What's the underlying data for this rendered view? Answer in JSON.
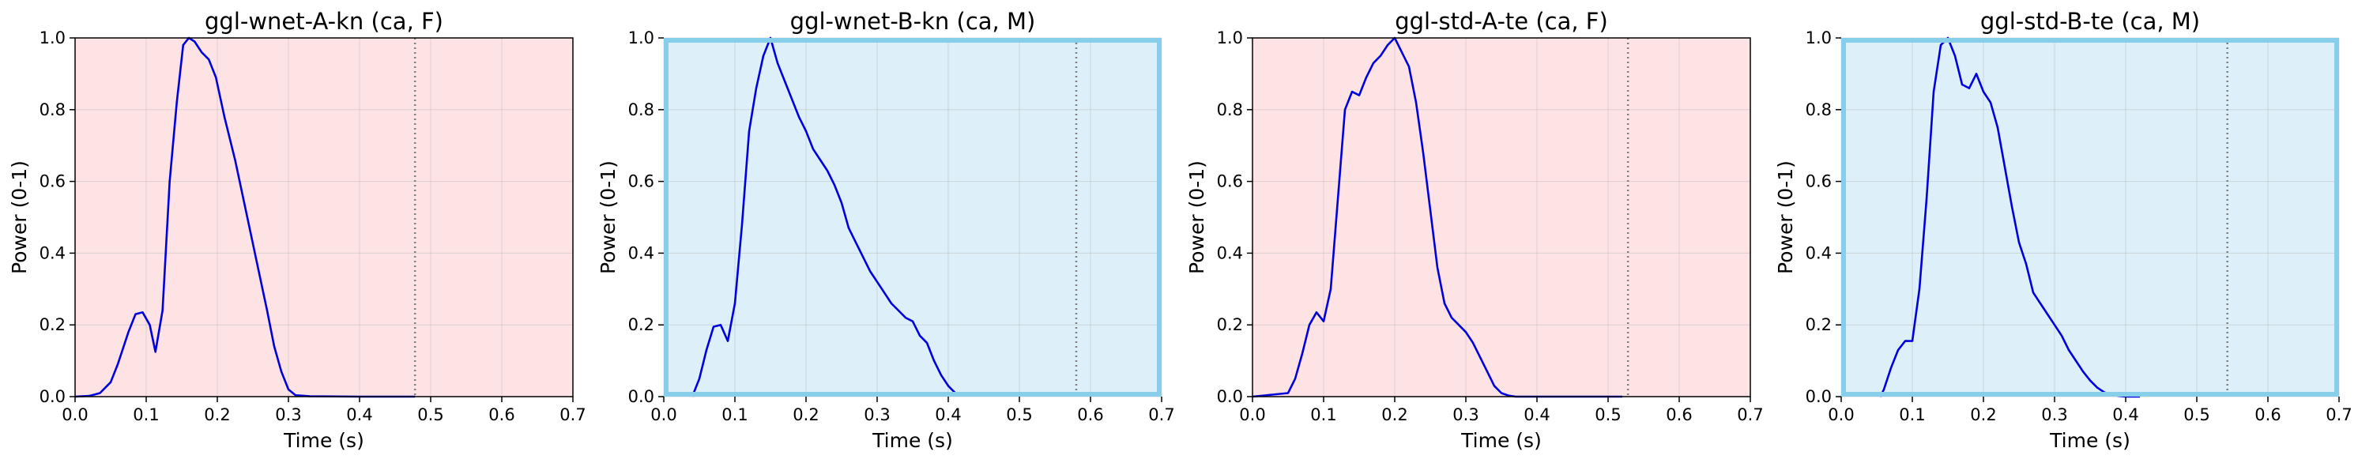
{
  "chart_data": [
    {
      "type": "line",
      "title": "ggl-wnet-A-kn (ca, F)",
      "xlabel": "Time (s)",
      "ylabel": "Power (0-1)",
      "xlim": [
        0,
        0.7
      ],
      "ylim": [
        0,
        1.0
      ],
      "xticks": [
        "0.0",
        "0.1",
        "0.2",
        "0.3",
        "0.4",
        "0.5",
        "0.6",
        "0.7"
      ],
      "yticks": [
        "0.0",
        "0.2",
        "0.4",
        "0.6",
        "0.8",
        "1.0"
      ],
      "grid": true,
      "background_color": "#fde3e3",
      "border_highlight": false,
      "line_color": "#0000dd",
      "vline_x": 0.478,
      "x": [
        0.0,
        0.02,
        0.035,
        0.05,
        0.06,
        0.075,
        0.085,
        0.095,
        0.105,
        0.113,
        0.123,
        0.133,
        0.143,
        0.152,
        0.16,
        0.168,
        0.178,
        0.188,
        0.198,
        0.21,
        0.225,
        0.24,
        0.255,
        0.27,
        0.28,
        0.29,
        0.3,
        0.31,
        0.33,
        0.4,
        0.478
      ],
      "y": [
        0.0,
        0.002,
        0.01,
        0.04,
        0.09,
        0.18,
        0.23,
        0.235,
        0.2,
        0.125,
        0.24,
        0.6,
        0.82,
        0.98,
        1.0,
        0.99,
        0.96,
        0.94,
        0.89,
        0.78,
        0.66,
        0.52,
        0.38,
        0.24,
        0.14,
        0.07,
        0.02,
        0.004,
        0.001,
        0.0,
        0.0
      ]
    },
    {
      "type": "line",
      "title": "ggl-wnet-B-kn (ca, M)",
      "xlabel": "Time (s)",
      "ylabel": "Power (0-1)",
      "xlim": [
        0,
        0.7
      ],
      "ylim": [
        0,
        1.0
      ],
      "xticks": [
        "0.0",
        "0.1",
        "0.2",
        "0.3",
        "0.4",
        "0.5",
        "0.6",
        "0.7"
      ],
      "yticks": [
        "0.0",
        "0.2",
        "0.4",
        "0.6",
        "0.8",
        "1.0"
      ],
      "grid": true,
      "background_color": "#ddeff8",
      "border_highlight": true,
      "border_color": "#87ceeb",
      "line_color": "#0000dd",
      "vline_x": 0.58,
      "x": [
        0.04,
        0.05,
        0.06,
        0.07,
        0.08,
        0.09,
        0.1,
        0.11,
        0.12,
        0.13,
        0.14,
        0.15,
        0.16,
        0.17,
        0.18,
        0.19,
        0.2,
        0.21,
        0.22,
        0.23,
        0.24,
        0.25,
        0.26,
        0.27,
        0.28,
        0.29,
        0.3,
        0.31,
        0.32,
        0.33,
        0.34,
        0.35,
        0.36,
        0.37,
        0.38,
        0.39,
        0.4,
        0.41
      ],
      "y": [
        0.0,
        0.05,
        0.13,
        0.195,
        0.2,
        0.155,
        0.26,
        0.48,
        0.74,
        0.86,
        0.95,
        1.0,
        0.93,
        0.88,
        0.83,
        0.78,
        0.74,
        0.69,
        0.66,
        0.63,
        0.59,
        0.54,
        0.47,
        0.43,
        0.39,
        0.35,
        0.32,
        0.29,
        0.26,
        0.24,
        0.22,
        0.21,
        0.17,
        0.15,
        0.1,
        0.06,
        0.03,
        0.01
      ]
    },
    {
      "type": "line",
      "title": "ggl-std-A-te (ca, F)",
      "xlabel": "Time (s)",
      "ylabel": "Power (0-1)",
      "xlim": [
        0,
        0.7
      ],
      "ylim": [
        0,
        1.0
      ],
      "xticks": [
        "0.0",
        "0.1",
        "0.2",
        "0.3",
        "0.4",
        "0.5",
        "0.6",
        "0.7"
      ],
      "yticks": [
        "0.0",
        "0.2",
        "0.4",
        "0.6",
        "0.8",
        "1.0"
      ],
      "grid": true,
      "background_color": "#fde3e3",
      "border_highlight": false,
      "line_color": "#0000dd",
      "vline_x": 0.528,
      "x": [
        0.0,
        0.05,
        0.06,
        0.07,
        0.08,
        0.09,
        0.1,
        0.11,
        0.12,
        0.13,
        0.14,
        0.15,
        0.16,
        0.17,
        0.18,
        0.19,
        0.2,
        0.21,
        0.22,
        0.23,
        0.24,
        0.25,
        0.26,
        0.27,
        0.28,
        0.29,
        0.3,
        0.31,
        0.32,
        0.33,
        0.34,
        0.35,
        0.36,
        0.37,
        0.38,
        0.4,
        0.45,
        0.52
      ],
      "y": [
        0.0,
        0.01,
        0.05,
        0.12,
        0.2,
        0.235,
        0.21,
        0.3,
        0.55,
        0.8,
        0.85,
        0.84,
        0.89,
        0.93,
        0.95,
        0.98,
        1.0,
        0.96,
        0.92,
        0.82,
        0.68,
        0.52,
        0.36,
        0.26,
        0.22,
        0.2,
        0.18,
        0.15,
        0.11,
        0.07,
        0.03,
        0.01,
        0.003,
        0.0,
        0.0,
        0.0,
        0.0,
        0.0
      ]
    },
    {
      "type": "line",
      "title": "ggl-std-B-te (ca, M)",
      "xlabel": "Time (s)",
      "ylabel": "Power (0-1)",
      "xlim": [
        0,
        0.7
      ],
      "ylim": [
        0,
        1.0
      ],
      "xticks": [
        "0.0",
        "0.1",
        "0.2",
        "0.3",
        "0.4",
        "0.5",
        "0.6",
        "0.7"
      ],
      "yticks": [
        "0.0",
        "0.2",
        "0.4",
        "0.6",
        "0.8",
        "1.0"
      ],
      "grid": true,
      "background_color": "#ddeff8",
      "border_highlight": true,
      "border_color": "#87ceeb",
      "line_color": "#0000dd",
      "vline_x": 0.543,
      "x": [
        0.055,
        0.06,
        0.07,
        0.08,
        0.09,
        0.1,
        0.11,
        0.12,
        0.13,
        0.14,
        0.15,
        0.16,
        0.17,
        0.18,
        0.19,
        0.2,
        0.21,
        0.22,
        0.23,
        0.24,
        0.25,
        0.26,
        0.27,
        0.28,
        0.29,
        0.3,
        0.31,
        0.32,
        0.33,
        0.34,
        0.35,
        0.36,
        0.37,
        0.38,
        0.39,
        0.4,
        0.42
      ],
      "y": [
        0.0,
        0.02,
        0.08,
        0.13,
        0.155,
        0.155,
        0.3,
        0.55,
        0.85,
        0.98,
        1.0,
        0.95,
        0.87,
        0.86,
        0.9,
        0.85,
        0.82,
        0.75,
        0.64,
        0.53,
        0.43,
        0.37,
        0.29,
        0.26,
        0.23,
        0.2,
        0.17,
        0.13,
        0.1,
        0.07,
        0.045,
        0.025,
        0.012,
        0.005,
        0.002,
        0.0,
        0.0
      ]
    }
  ]
}
